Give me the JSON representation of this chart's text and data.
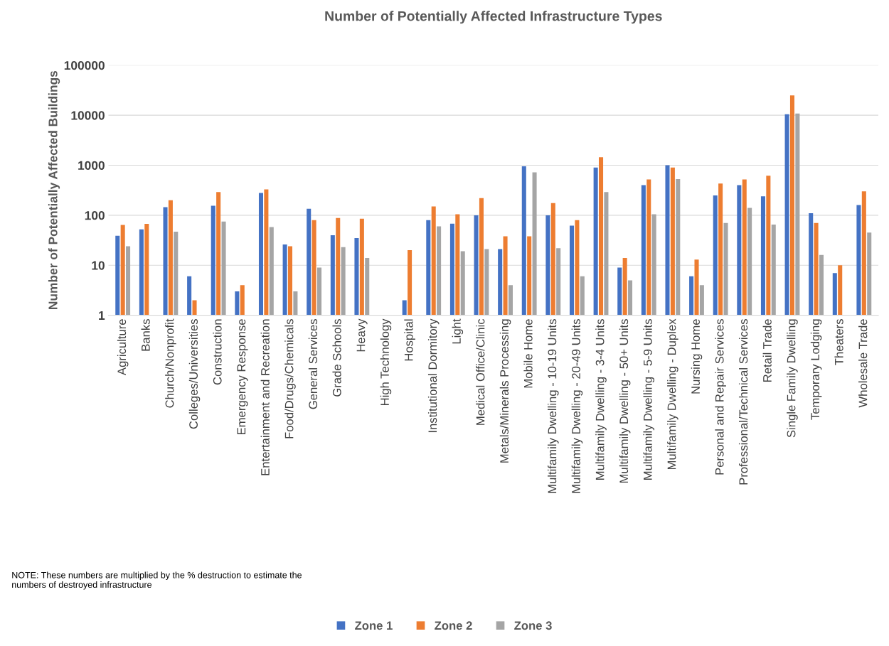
{
  "chart_data": {
    "type": "bar",
    "title": "Number of Potentially Affected Infrastructure Types",
    "ylabel": "Number of Potentially Affected Buildings",
    "categories": [
      "Agriculture",
      "Banks",
      "Church/Nonprofit",
      "Colleges/Universities",
      "Construction",
      "Emergency Response",
      "Entertainment and Recreation",
      "Food/Drugs/Chemicals",
      "General Services",
      "Grade Schools",
      "Heavy",
      "High Technology",
      "Hospital",
      "Institutional Dormitory",
      "Light",
      "Medical Office/Clinic",
      "Metals/Minerals Processing",
      "Mobile Home",
      "Multifamily Dwelling - 10-19 Units",
      "Multifamily Dwelling - 20-49 Units",
      "Multifamily Dwelling - 3-4 Units",
      "Multifamily Dwelling - 50+ Units",
      "Multifamily Dwelling - 5-9 Units",
      "Multifamily Dwelling - Duplex",
      "Nursing Home",
      "Personal and Repair Services",
      "Professional/Technical Services",
      "Retail Trade",
      "Single Family Dwelling",
      "Temporary Lodging",
      "Theaters",
      "Wholesale Trade"
    ],
    "series": [
      {
        "name": "Zone 1",
        "color": "#4472c4",
        "values": [
          39,
          52,
          145,
          6,
          155,
          3,
          280,
          26,
          135,
          40,
          35,
          null,
          2,
          80,
          68,
          100,
          21,
          950,
          100,
          62,
          900,
          9,
          400,
          1000,
          6,
          250,
          400,
          240,
          10500,
          110,
          7,
          160
        ]
      },
      {
        "name": "Zone 2",
        "color": "#ed7d31",
        "values": [
          64,
          67,
          200,
          2,
          290,
          4,
          330,
          24,
          80,
          88,
          85,
          null,
          20,
          150,
          105,
          220,
          38,
          38,
          175,
          80,
          1450,
          14,
          520,
          900,
          13,
          430,
          520,
          620,
          25000,
          70,
          10,
          300
        ]
      },
      {
        "name": "Zone 3",
        "color": "#a5a5a5",
        "values": [
          24,
          null,
          47,
          null,
          75,
          null,
          58,
          3,
          9,
          23,
          14,
          null,
          null,
          60,
          19,
          21,
          4,
          720,
          22,
          6,
          290,
          5,
          105,
          530,
          4,
          70,
          140,
          65,
          10800,
          16,
          null,
          45
        ]
      }
    ],
    "log": true,
    "ylim": [
      1,
      100000
    ],
    "yticks": [
      1,
      10,
      100,
      1000,
      10000,
      100000
    ],
    "grid": "y",
    "legend": "bottom",
    "annotations": [
      "NOTE: These numbers are multiplied by the % destruction to estimate the numbers of destroyed infrastructure"
    ]
  }
}
